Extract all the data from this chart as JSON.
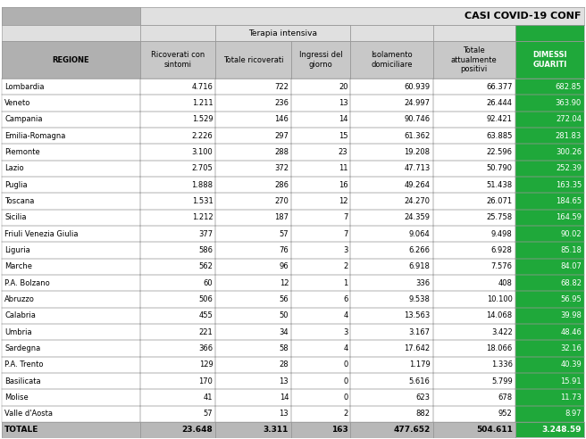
{
  "title": "CASI COVID-19 CONF",
  "col_headers": [
    "REGIONE",
    "Ricoverati con\nsintomi",
    "Totale ricoverati",
    "Ingressi del\ngiorno",
    "Isolamento\ndomiciliare",
    "Totale\nattualmente\npositivi",
    "DIMESSI\nGUARITI"
  ],
  "terapia_intensiva_label": "Terapia intensiva",
  "rows": [
    [
      "Lombardia",
      "4.716",
      "722",
      "20",
      "60.939",
      "66.377",
      "682.85"
    ],
    [
      "Veneto",
      "1.211",
      "236",
      "13",
      "24.997",
      "26.444",
      "363.90"
    ],
    [
      "Campania",
      "1.529",
      "146",
      "14",
      "90.746",
      "92.421",
      "272.04"
    ],
    [
      "Emilia-Romagna",
      "2.226",
      "297",
      "15",
      "61.362",
      "63.885",
      "281.83"
    ],
    [
      "Piemonte",
      "3.100",
      "288",
      "23",
      "19.208",
      "22.596",
      "300.26"
    ],
    [
      "Lazio",
      "2.705",
      "372",
      "11",
      "47.713",
      "50.790",
      "252.39"
    ],
    [
      "Puglia",
      "1.888",
      "286",
      "16",
      "49.264",
      "51.438",
      "163.35"
    ],
    [
      "Toscana",
      "1.531",
      "270",
      "12",
      "24.270",
      "26.071",
      "184.65"
    ],
    [
      "Sicilia",
      "1.212",
      "187",
      "7",
      "24.359",
      "25.758",
      "164.59"
    ],
    [
      "Friuli Venezia Giulia",
      "377",
      "57",
      "7",
      "9.064",
      "9.498",
      "90.02"
    ],
    [
      "Liguria",
      "586",
      "76",
      "3",
      "6.266",
      "6.928",
      "85.18"
    ],
    [
      "Marche",
      "562",
      "96",
      "2",
      "6.918",
      "7.576",
      "84.07"
    ],
    [
      "P.A. Bolzano",
      "60",
      "12",
      "1",
      "336",
      "408",
      "68.82"
    ],
    [
      "Abruzzo",
      "506",
      "56",
      "6",
      "9.538",
      "10.100",
      "56.95"
    ],
    [
      "Calabria",
      "455",
      "50",
      "4",
      "13.563",
      "14.068",
      "39.98"
    ],
    [
      "Umbria",
      "221",
      "34",
      "3",
      "3.167",
      "3.422",
      "48.46"
    ],
    [
      "Sardegna",
      "366",
      "58",
      "4",
      "17.642",
      "18.066",
      "32.16"
    ],
    [
      "P.A. Trento",
      "129",
      "28",
      "0",
      "1.179",
      "1.336",
      "40.39"
    ],
    [
      "Basilicata",
      "170",
      "13",
      "0",
      "5.616",
      "5.799",
      "15.91"
    ],
    [
      "Molise",
      "41",
      "14",
      "0",
      "623",
      "678",
      "11.73"
    ],
    [
      "Valle d'Aosta",
      "57",
      "13",
      "2",
      "882",
      "952",
      "8.97"
    ]
  ],
  "totale": [
    "TOTALE",
    "23.648",
    "3.311",
    "163",
    "477.652",
    "504.611",
    "3.248.59"
  ],
  "green_color": "#1fa83a",
  "header_bg": "#c8c8c8",
  "regione_header_bg": "#b0b0b0",
  "title_bg": "#e0e0e0",
  "totale_bg": "#b8b8b8",
  "terapia_bg": "#e0e0e0",
  "border_color": "#999999",
  "white_bg": "#ffffff",
  "top_margin_color": "#ffffff",
  "col_widths_raw": [
    2.1,
    1.15,
    1.15,
    0.9,
    1.25,
    1.25,
    1.05
  ],
  "title_fontsize": 8.0,
  "header_fontsize": 6.0,
  "data_fontsize": 6.0,
  "totale_fontsize": 6.5
}
